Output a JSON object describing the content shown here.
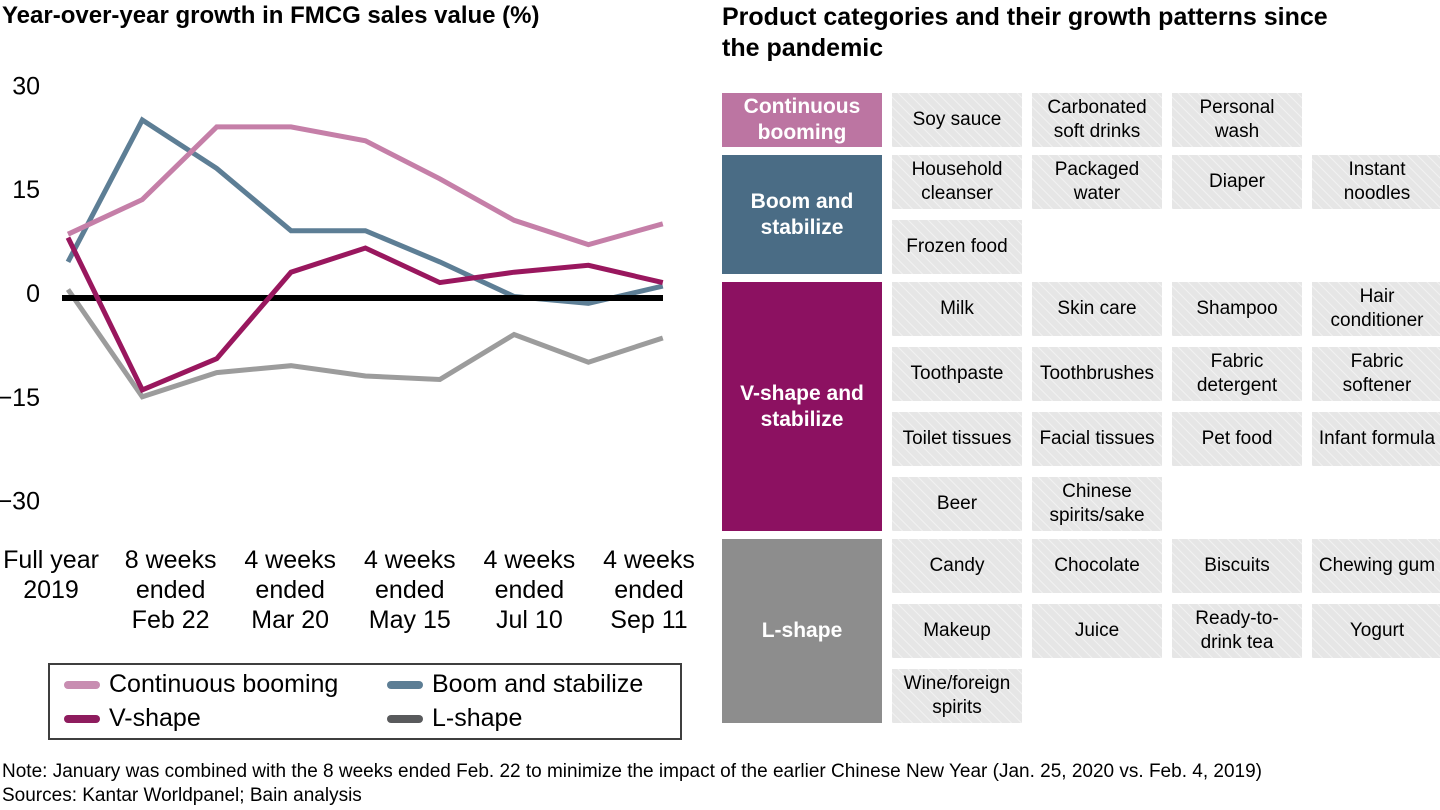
{
  "left_chart": {
    "title": "Year-over-year growth in FMCG sales value (%)",
    "x_labels": [
      [
        "Full year",
        "2019"
      ],
      [
        "8 weeks",
        "ended",
        "Feb 22"
      ],
      [
        "4 weeks",
        "ended",
        "Mar 20"
      ],
      [
        "4 weeks",
        "ended",
        "May 15"
      ],
      [
        "4 weeks",
        "ended",
        "Jul 10"
      ],
      [
        "4 weeks",
        "ended",
        "Sep 11"
      ]
    ],
    "legend": [
      {
        "label": "Continuous booming",
        "color": "#c88db1"
      },
      {
        "label": "Boom and stabilize",
        "color": "#5d7e95"
      },
      {
        "label": "V-shape",
        "color": "#8e1c5e"
      },
      {
        "label": "L-shape",
        "color": "#595a5c"
      }
    ]
  },
  "chart_data": {
    "type": "line",
    "title": "Year-over-year growth in FMCG sales value (%)",
    "ylim": [
      -30,
      30
    ],
    "grid": false,
    "legend_position": "bottom-left-box",
    "y_ticks": [
      {
        "v": 30,
        "label": "30"
      },
      {
        "v": 15,
        "label": "15"
      },
      {
        "v": 0,
        "label": "0"
      },
      {
        "v": -15,
        "label": "−15"
      },
      {
        "v": -30,
        "label": "−30"
      }
    ],
    "x_axis_labels": [
      "Full year 2019",
      "8 weeks ended Feb 22",
      "4 weeks ended Mar 20",
      "4 weeks ended May 15",
      "4 weeks ended Jul 10",
      "4 weeks ended Sep 11"
    ],
    "x_point_count": 9,
    "zero_line_color": "#000000",
    "series": [
      {
        "name": "Continuous booming",
        "color": "#c57fa8",
        "values": [
          8.5,
          13.5,
          24,
          24,
          22,
          16.5,
          10.5,
          7,
          10
        ]
      },
      {
        "name": "Boom and stabilize",
        "color": "#5d7e95",
        "values": [
          4.5,
          25,
          18,
          9,
          9,
          4.5,
          -0.5,
          -1.5,
          1
        ]
      },
      {
        "name": "V-shape",
        "color": "#99175e",
        "values": [
          8,
          -14,
          -9.5,
          3,
          6.5,
          1.5,
          3,
          4,
          1.5
        ]
      },
      {
        "name": "L-shape",
        "color": "#9c9c9c",
        "values": [
          0.5,
          -15,
          -11.5,
          -10.5,
          -12,
          -12.5,
          -6,
          -10,
          -6.5
        ]
      }
    ]
  },
  "right_panel": {
    "title": "Product categories and their growth patterns since\nthe pandemic",
    "item_bg": "#e6e6e6",
    "sections": [
      {
        "label": "Continuous booming",
        "color": "#bc75a2",
        "items": [
          "Soy sauce",
          "Carbonated soft drinks",
          "Personal wash"
        ]
      },
      {
        "label": "Boom and stabilize",
        "color": "#4a6c85",
        "items": [
          "Household cleanser",
          "Packaged water",
          "Diaper",
          "Instant noodles",
          "Frozen food"
        ]
      },
      {
        "label": "V-shape and stabilize",
        "color": "#8c1161",
        "items": [
          "Milk",
          "Skin care",
          "Shampoo",
          "Hair conditioner",
          "Toothpaste",
          "Toothbrushes",
          "Fabric detergent",
          "Fabric softener",
          "Toilet tissues",
          "Facial tissues",
          "Pet food",
          "Infant formula",
          "Beer",
          "Chinese spirits/sake"
        ]
      },
      {
        "label": "L-shape",
        "color": "#8d8d8d",
        "items": [
          "Candy",
          "Chocolate",
          "Biscuits",
          "Chewing gum",
          "Makeup",
          "Juice",
          "Ready-to-drink tea",
          "Yogurt",
          "Wine/​foreign spirits"
        ]
      }
    ]
  },
  "footer": {
    "note": "Note: January was combined with the 8 weeks ended Feb. 22 to minimize the impact of the earlier Chinese New Year (Jan. 25, 2020 vs. Feb. 4, 2019)",
    "sources": "Sources: Kantar Worldpanel; Bain analysis"
  }
}
